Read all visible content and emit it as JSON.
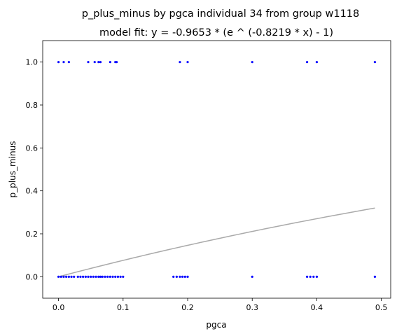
{
  "chart_data": {
    "type": "scatter",
    "title": "p_plus_minus by pgca individual 34 from group w1118",
    "subtitle": "model fit: y = -0.9653 * (e ^ (-0.8219 * x) - 1)",
    "xlabel": "pgca",
    "ylabel": "p_plus_minus",
    "xlim": [
      -0.0245,
      0.5145
    ],
    "ylim": [
      -0.1,
      1.1
    ],
    "xticks": [
      0.0,
      0.1,
      0.2,
      0.3,
      0.4,
      0.5
    ],
    "xtick_labels": [
      "0.0",
      "0.1",
      "0.2",
      "0.3",
      "0.4",
      "0.5"
    ],
    "yticks": [
      0.0,
      0.2,
      0.4,
      0.6,
      0.8,
      1.0
    ],
    "ytick_labels": [
      "0.0",
      "0.2",
      "0.4",
      "0.6",
      "0.8",
      "1.0"
    ],
    "grid": false,
    "point_color": "#0000ff",
    "fit_color": "#aaaaaa",
    "points": {
      "x": [
        0.0,
        0.008,
        0.016,
        0.046,
        0.056,
        0.062,
        0.065,
        0.08,
        0.088,
        0.09,
        0.188,
        0.2,
        0.3,
        0.385,
        0.4,
        0.49,
        0.0,
        0.004,
        0.008,
        0.012,
        0.016,
        0.02,
        0.024,
        0.03,
        0.034,
        0.038,
        0.042,
        0.046,
        0.05,
        0.054,
        0.058,
        0.062,
        0.065,
        0.068,
        0.072,
        0.076,
        0.08,
        0.084,
        0.088,
        0.092,
        0.096,
        0.1,
        0.178,
        0.183,
        0.188,
        0.192,
        0.196,
        0.2,
        0.3,
        0.385,
        0.39,
        0.395,
        0.4,
        0.49
      ],
      "y": [
        1,
        1,
        1,
        1,
        1,
        1,
        1,
        1,
        1,
        1,
        1,
        1,
        1,
        1,
        1,
        1,
        0,
        0,
        0,
        0,
        0,
        0,
        0,
        0,
        0,
        0,
        0,
        0,
        0,
        0,
        0,
        0,
        0,
        0,
        0,
        0,
        0,
        0,
        0,
        0,
        0,
        0,
        0,
        0,
        0,
        0,
        0,
        0,
        0,
        0,
        0,
        0,
        0,
        0
      ]
    },
    "fit": {
      "a": -0.9653,
      "b": -0.8219,
      "x_range": [
        0.0,
        0.49
      ]
    }
  }
}
